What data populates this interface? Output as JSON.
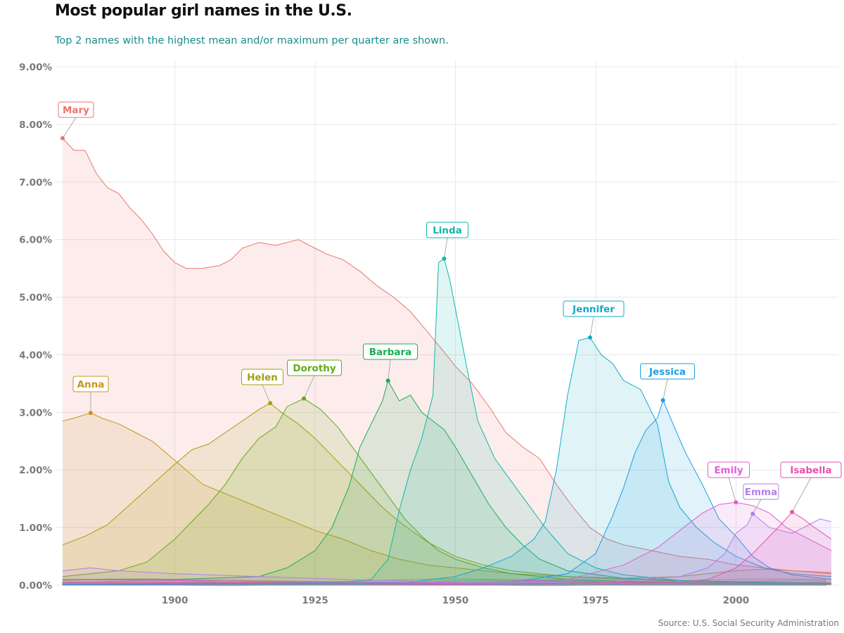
{
  "header": {
    "title": "Most popular girl names in the U.S.",
    "subtitle": "Top 2 names with the highest mean and/or maximum per quarter are shown.",
    "source": "Source: U.S. Social Security Administration"
  },
  "chart_data": {
    "type": "area",
    "title": "Most popular girl names in the U.S.",
    "subtitle": "Top 2 names with the highest mean and/or maximum per quarter are shown.",
    "xlabel": "",
    "ylabel": "",
    "xlim": [
      1880,
      2017
    ],
    "ylim": [
      0,
      9
    ],
    "x_ticks": [
      1900,
      1925,
      1950,
      1975,
      2000
    ],
    "y_ticks": [
      0,
      1,
      2,
      3,
      4,
      5,
      6,
      7,
      8,
      9
    ],
    "y_tick_labels": [
      "0.00%",
      "1.00%",
      "2.00%",
      "3.00%",
      "4.00%",
      "5.00%",
      "6.00%",
      "7.00%",
      "8.00%",
      "9.00%"
    ],
    "grid": true,
    "series": [
      {
        "name": "Mary",
        "color": "#e8776f",
        "peak": [
          1880,
          7.76
        ],
        "points": [
          [
            1880,
            7.76
          ],
          [
            1882,
            7.55
          ],
          [
            1884,
            7.55
          ],
          [
            1886,
            7.15
          ],
          [
            1888,
            6.9
          ],
          [
            1890,
            6.8
          ],
          [
            1892,
            6.55
          ],
          [
            1894,
            6.35
          ],
          [
            1896,
            6.1
          ],
          [
            1898,
            5.8
          ],
          [
            1900,
            5.6
          ],
          [
            1902,
            5.5
          ],
          [
            1905,
            5.5
          ],
          [
            1908,
            5.55
          ],
          [
            1910,
            5.65
          ],
          [
            1912,
            5.85
          ],
          [
            1915,
            5.95
          ],
          [
            1918,
            5.9
          ],
          [
            1922,
            6.0
          ],
          [
            1925,
            5.85
          ],
          [
            1927,
            5.75
          ],
          [
            1930,
            5.65
          ],
          [
            1933,
            5.45
          ],
          [
            1936,
            5.2
          ],
          [
            1939,
            5.0
          ],
          [
            1942,
            4.75
          ],
          [
            1945,
            4.4
          ],
          [
            1948,
            4.05
          ],
          [
            1950,
            3.8
          ],
          [
            1953,
            3.5
          ],
          [
            1956,
            3.1
          ],
          [
            1959,
            2.65
          ],
          [
            1962,
            2.4
          ],
          [
            1965,
            2.2
          ],
          [
            1968,
            1.75
          ],
          [
            1971,
            1.35
          ],
          [
            1974,
            1.0
          ],
          [
            1977,
            0.8
          ],
          [
            1980,
            0.7
          ],
          [
            1985,
            0.6
          ],
          [
            1990,
            0.5
          ],
          [
            1995,
            0.45
          ],
          [
            2000,
            0.35
          ],
          [
            2005,
            0.3
          ],
          [
            2010,
            0.25
          ],
          [
            2017,
            0.2
          ]
        ]
      },
      {
        "name": "Anna",
        "color": "#c7951c",
        "peak": [
          1885,
          2.99
        ],
        "points": [
          [
            1880,
            2.85
          ],
          [
            1882,
            2.9
          ],
          [
            1885,
            2.99
          ],
          [
            1887,
            2.9
          ],
          [
            1890,
            2.8
          ],
          [
            1893,
            2.65
          ],
          [
            1896,
            2.5
          ],
          [
            1899,
            2.25
          ],
          [
            1902,
            2.0
          ],
          [
            1905,
            1.75
          ],
          [
            1910,
            1.55
          ],
          [
            1915,
            1.35
          ],
          [
            1920,
            1.15
          ],
          [
            1925,
            0.95
          ],
          [
            1930,
            0.8
          ],
          [
            1935,
            0.6
          ],
          [
            1940,
            0.45
          ],
          [
            1945,
            0.35
          ],
          [
            1950,
            0.3
          ],
          [
            1960,
            0.2
          ],
          [
            1970,
            0.15
          ],
          [
            1980,
            0.12
          ],
          [
            1990,
            0.15
          ],
          [
            2000,
            0.25
          ],
          [
            2005,
            0.28
          ],
          [
            2010,
            0.25
          ],
          [
            2017,
            0.22
          ]
        ]
      },
      {
        "name": "Helen",
        "color": "#a2a10c",
        "peak": [
          1917,
          3.16
        ],
        "points": [
          [
            1880,
            0.7
          ],
          [
            1884,
            0.85
          ],
          [
            1888,
            1.05
          ],
          [
            1892,
            1.4
          ],
          [
            1896,
            1.75
          ],
          [
            1900,
            2.1
          ],
          [
            1903,
            2.35
          ],
          [
            1906,
            2.45
          ],
          [
            1909,
            2.65
          ],
          [
            1912,
            2.85
          ],
          [
            1915,
            3.05
          ],
          [
            1917,
            3.16
          ],
          [
            1919,
            3.0
          ],
          [
            1922,
            2.8
          ],
          [
            1925,
            2.55
          ],
          [
            1928,
            2.25
          ],
          [
            1931,
            1.95
          ],
          [
            1934,
            1.65
          ],
          [
            1937,
            1.35
          ],
          [
            1940,
            1.1
          ],
          [
            1945,
            0.75
          ],
          [
            1950,
            0.5
          ],
          [
            1955,
            0.35
          ],
          [
            1960,
            0.25
          ],
          [
            1970,
            0.15
          ],
          [
            1980,
            0.1
          ],
          [
            2000,
            0.05
          ],
          [
            2017,
            0.04
          ]
        ]
      },
      {
        "name": "Dorothy",
        "color": "#63a91a",
        "peak": [
          1923,
          3.24
        ],
        "points": [
          [
            1880,
            0.15
          ],
          [
            1890,
            0.25
          ],
          [
            1895,
            0.4
          ],
          [
            1900,
            0.8
          ],
          [
            1903,
            1.1
          ],
          [
            1906,
            1.4
          ],
          [
            1909,
            1.75
          ],
          [
            1912,
            2.2
          ],
          [
            1915,
            2.55
          ],
          [
            1918,
            2.75
          ],
          [
            1920,
            3.1
          ],
          [
            1923,
            3.24
          ],
          [
            1926,
            3.05
          ],
          [
            1929,
            2.75
          ],
          [
            1932,
            2.35
          ],
          [
            1935,
            1.95
          ],
          [
            1938,
            1.55
          ],
          [
            1941,
            1.15
          ],
          [
            1944,
            0.85
          ],
          [
            1947,
            0.6
          ],
          [
            1950,
            0.45
          ],
          [
            1955,
            0.3
          ],
          [
            1960,
            0.2
          ],
          [
            1970,
            0.1
          ],
          [
            1990,
            0.04
          ],
          [
            2017,
            0.02
          ]
        ]
      },
      {
        "name": "Barbara",
        "color": "#1cab52",
        "peak": [
          1938,
          3.55
        ],
        "points": [
          [
            1880,
            0.1
          ],
          [
            1900,
            0.1
          ],
          [
            1915,
            0.15
          ],
          [
            1920,
            0.3
          ],
          [
            1925,
            0.6
          ],
          [
            1928,
            1.0
          ],
          [
            1931,
            1.7
          ],
          [
            1933,
            2.4
          ],
          [
            1935,
            2.8
          ],
          [
            1937,
            3.2
          ],
          [
            1938,
            3.55
          ],
          [
            1940,
            3.2
          ],
          [
            1942,
            3.3
          ],
          [
            1944,
            3.0
          ],
          [
            1946,
            2.85
          ],
          [
            1948,
            2.7
          ],
          [
            1950,
            2.4
          ],
          [
            1953,
            1.9
          ],
          [
            1956,
            1.4
          ],
          [
            1959,
            1.0
          ],
          [
            1962,
            0.7
          ],
          [
            1965,
            0.45
          ],
          [
            1970,
            0.25
          ],
          [
            1980,
            0.12
          ],
          [
            1990,
            0.08
          ],
          [
            2017,
            0.03
          ]
        ]
      },
      {
        "name": "Linda",
        "color": "#10b7a8",
        "peak": [
          1948,
          5.67
        ],
        "points": [
          [
            1880,
            0.02
          ],
          [
            1930,
            0.05
          ],
          [
            1935,
            0.1
          ],
          [
            1938,
            0.45
          ],
          [
            1940,
            1.3
          ],
          [
            1942,
            2.0
          ],
          [
            1944,
            2.55
          ],
          [
            1946,
            3.3
          ],
          [
            1947,
            5.6
          ],
          [
            1948,
            5.67
          ],
          [
            1949,
            5.3
          ],
          [
            1950,
            4.8
          ],
          [
            1952,
            3.8
          ],
          [
            1954,
            2.85
          ],
          [
            1957,
            2.2
          ],
          [
            1960,
            1.8
          ],
          [
            1963,
            1.4
          ],
          [
            1966,
            1.0
          ],
          [
            1970,
            0.55
          ],
          [
            1975,
            0.3
          ],
          [
            1980,
            0.18
          ],
          [
            1990,
            0.08
          ],
          [
            2000,
            0.05
          ],
          [
            2017,
            0.03
          ]
        ]
      },
      {
        "name": "Jennifer",
        "color": "#11abca",
        "peak": [
          1974,
          4.3
        ],
        "points": [
          [
            1880,
            0.01
          ],
          [
            1940,
            0.03
          ],
          [
            1950,
            0.15
          ],
          [
            1955,
            0.3
          ],
          [
            1960,
            0.5
          ],
          [
            1964,
            0.8
          ],
          [
            1966,
            1.1
          ],
          [
            1968,
            2.0
          ],
          [
            1970,
            3.3
          ],
          [
            1972,
            4.25
          ],
          [
            1974,
            4.3
          ],
          [
            1976,
            4.0
          ],
          [
            1978,
            3.85
          ],
          [
            1980,
            3.55
          ],
          [
            1983,
            3.4
          ],
          [
            1986,
            2.8
          ],
          [
            1988,
            1.8
          ],
          [
            1990,
            1.35
          ],
          [
            1993,
            1.0
          ],
          [
            1996,
            0.75
          ],
          [
            2000,
            0.5
          ],
          [
            2005,
            0.3
          ],
          [
            2010,
            0.2
          ],
          [
            2017,
            0.15
          ]
        ]
      },
      {
        "name": "Jessica",
        "color": "#1f9de0",
        "peak": [
          1987,
          3.21
        ],
        "points": [
          [
            1880,
            0.01
          ],
          [
            1960,
            0.05
          ],
          [
            1970,
            0.2
          ],
          [
            1975,
            0.55
          ],
          [
            1978,
            1.2
          ],
          [
            1980,
            1.7
          ],
          [
            1982,
            2.3
          ],
          [
            1984,
            2.7
          ],
          [
            1986,
            2.9
          ],
          [
            1987,
            3.21
          ],
          [
            1989,
            2.75
          ],
          [
            1991,
            2.3
          ],
          [
            1994,
            1.75
          ],
          [
            1997,
            1.15
          ],
          [
            2000,
            0.85
          ],
          [
            2003,
            0.5
          ],
          [
            2006,
            0.3
          ],
          [
            2010,
            0.18
          ],
          [
            2017,
            0.1
          ]
        ]
      },
      {
        "name": "Emily",
        "color": "#e05fd4",
        "peak": [
          2000,
          1.44
        ],
        "points": [
          [
            1880,
            0.1
          ],
          [
            1900,
            0.08
          ],
          [
            1950,
            0.04
          ],
          [
            1970,
            0.1
          ],
          [
            1980,
            0.35
          ],
          [
            1986,
            0.65
          ],
          [
            1990,
            0.95
          ],
          [
            1994,
            1.25
          ],
          [
            1997,
            1.4
          ],
          [
            2000,
            1.44
          ],
          [
            2003,
            1.38
          ],
          [
            2006,
            1.25
          ],
          [
            2009,
            1.0
          ],
          [
            2012,
            0.85
          ],
          [
            2015,
            0.7
          ],
          [
            2017,
            0.6
          ]
        ]
      },
      {
        "name": "Emma",
        "color": "#b27fe8",
        "peak": [
          2003,
          1.24
        ],
        "points": [
          [
            1880,
            0.25
          ],
          [
            1885,
            0.3
          ],
          [
            1890,
            0.25
          ],
          [
            1900,
            0.2
          ],
          [
            1915,
            0.15
          ],
          [
            1930,
            0.1
          ],
          [
            1950,
            0.05
          ],
          [
            1975,
            0.04
          ],
          [
            1990,
            0.15
          ],
          [
            1995,
            0.3
          ],
          [
            1998,
            0.55
          ],
          [
            2000,
            0.9
          ],
          [
            2002,
            1.05
          ],
          [
            2003,
            1.24
          ],
          [
            2006,
            1.0
          ],
          [
            2008,
            0.95
          ],
          [
            2010,
            0.9
          ],
          [
            2013,
            1.05
          ],
          [
            2015,
            1.15
          ],
          [
            2017,
            1.1
          ]
        ]
      },
      {
        "name": "Isabella",
        "color": "#e94fae",
        "peak": [
          2010,
          1.27
        ],
        "points": [
          [
            1880,
            0.05
          ],
          [
            1900,
            0.05
          ],
          [
            1950,
            0.02
          ],
          [
            1990,
            0.05
          ],
          [
            1995,
            0.1
          ],
          [
            2000,
            0.3
          ],
          [
            2003,
            0.55
          ],
          [
            2006,
            0.85
          ],
          [
            2008,
            1.05
          ],
          [
            2010,
            1.27
          ],
          [
            2012,
            1.15
          ],
          [
            2014,
            1.0
          ],
          [
            2017,
            0.8
          ]
        ]
      }
    ]
  }
}
